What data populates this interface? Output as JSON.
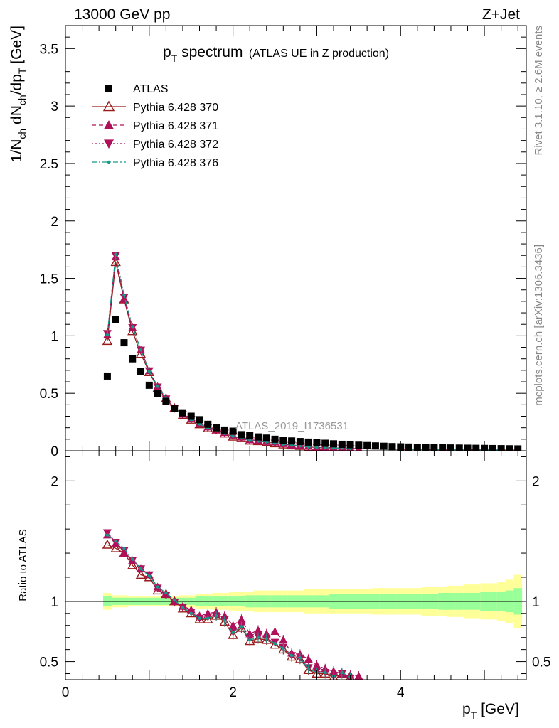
{
  "header": {
    "left": "13000 GeV pp",
    "right": "Z+Jet"
  },
  "side_text": {
    "rivet": "Rivet 3.1.10, ≥ 2.6M events",
    "mcplots": "mcplots.cern.ch [arXiv:1306.3436]"
  },
  "watermark": "ATLAS_2019_I1736531",
  "chart_data": {
    "type": "scatter",
    "title": "p_T spectrum",
    "title_main": "p",
    "title_sub": "T",
    "title_rest": " spectrum",
    "subtitle": "(ATLAS UE in Z production)",
    "xlabel": "p_T [GeV]",
    "xlabel_main": "p",
    "xlabel_sub": "T",
    "xlabel_rest": " [GeV]",
    "ylabel": "1/N_ch dN_ch/dp_T [GeV]",
    "ylabel_parts": [
      {
        "t": "1/N",
        "sub": false
      },
      {
        "t": "ch",
        "sub": true
      },
      {
        "t": " dN",
        "sub": false
      },
      {
        "t": "ch",
        "sub": true
      },
      {
        "t": "/dp",
        "sub": false
      },
      {
        "t": "T",
        "sub": true
      },
      {
        "t": " [GeV]",
        "sub": false
      }
    ],
    "ratio_ylabel": "Ratio to ATLAS",
    "xlim": [
      0,
      5.5
    ],
    "ylim": [
      0,
      3.7
    ],
    "ratio_ylim": [
      0.35,
      2.25
    ],
    "x_ticks": [
      0,
      2,
      4
    ],
    "y_ticks": [
      0,
      0.5,
      1,
      1.5,
      2,
      2.5,
      3,
      3.5
    ],
    "y_tick_labels": [
      "0",
      "0.5",
      "1",
      "1.5",
      "2",
      "2.5",
      "3",
      "3.5"
    ],
    "ratio_ticks": [
      0.5,
      1,
      2
    ],
    "ratio_tick_labels": [
      "0.5",
      "1",
      "2"
    ],
    "legend_position": "top-left",
    "x": [
      0.5,
      0.6,
      0.7,
      0.8,
      0.9,
      1.0,
      1.1,
      1.2,
      1.3,
      1.4,
      1.5,
      1.6,
      1.7,
      1.8,
      1.9,
      2.0,
      2.1,
      2.2,
      2.3,
      2.4,
      2.5,
      2.6,
      2.7,
      2.8,
      2.9,
      3.0,
      3.1,
      3.2,
      3.3,
      3.4,
      3.5,
      3.6,
      3.7,
      3.8,
      3.9,
      4.0,
      4.1,
      4.2,
      4.3,
      4.4,
      4.5,
      4.6,
      4.7,
      4.8,
      4.9,
      5.0,
      5.1,
      5.2,
      5.3,
      5.4
    ],
    "data": {
      "name": "ATLAS",
      "color": "#000000",
      "values": [
        0.65,
        1.14,
        0.94,
        0.8,
        0.69,
        0.57,
        0.5,
        0.43,
        0.37,
        0.33,
        0.3,
        0.27,
        0.23,
        0.2,
        0.18,
        0.17,
        0.14,
        0.13,
        0.12,
        0.11,
        0.1,
        0.09,
        0.085,
        0.08,
        0.075,
        0.07,
        0.065,
        0.06,
        0.056,
        0.052,
        0.048,
        0.045,
        0.042,
        0.039,
        0.036,
        0.034,
        0.032,
        0.03,
        0.028,
        0.026,
        0.025,
        0.024,
        0.023,
        0.022,
        0.021,
        0.02,
        0.019,
        0.018,
        0.017,
        0.016
      ],
      "band_inner": [
        0.04,
        0.03,
        0.03,
        0.03,
        0.03,
        0.03,
        0.03,
        0.03,
        0.03,
        0.03,
        0.03,
        0.04,
        0.04,
        0.04,
        0.04,
        0.04,
        0.04,
        0.05,
        0.05,
        0.05,
        0.05,
        0.05,
        0.05,
        0.05,
        0.05,
        0.05,
        0.05,
        0.06,
        0.06,
        0.06,
        0.06,
        0.06,
        0.06,
        0.06,
        0.06,
        0.06,
        0.06,
        0.06,
        0.06,
        0.06,
        0.07,
        0.07,
        0.07,
        0.07,
        0.07,
        0.08,
        0.08,
        0.08,
        0.09,
        0.11
      ],
      "band_outer": [
        0.07,
        0.05,
        0.05,
        0.04,
        0.04,
        0.04,
        0.04,
        0.04,
        0.04,
        0.05,
        0.05,
        0.06,
        0.06,
        0.07,
        0.07,
        0.08,
        0.08,
        0.08,
        0.09,
        0.09,
        0.09,
        0.09,
        0.09,
        0.09,
        0.1,
        0.1,
        0.1,
        0.1,
        0.1,
        0.1,
        0.1,
        0.1,
        0.11,
        0.11,
        0.11,
        0.11,
        0.11,
        0.11,
        0.12,
        0.12,
        0.12,
        0.13,
        0.13,
        0.14,
        0.14,
        0.15,
        0.15,
        0.16,
        0.18,
        0.22
      ]
    },
    "series": [
      {
        "name": "Pythia 6.428 370",
        "color": "#9a1a1a",
        "marker": "triangle-open",
        "line": "solid",
        "ratio": [
          1.47,
          1.44,
          1.4,
          1.3,
          1.22,
          1.2,
          1.09,
          1.06,
          1.0,
          0.94,
          0.9,
          0.85,
          0.85,
          0.88,
          0.83,
          0.72,
          0.78,
          0.67,
          0.69,
          0.68,
          0.64,
          0.6,
          0.54,
          0.52,
          0.43,
          0.4,
          0.4,
          0.37,
          0.4,
          0.37
        ]
      },
      {
        "name": "Pythia 6.428 371",
        "color": "#b0105a",
        "marker": "triangle-up",
        "line": "dashed",
        "ratio": [
          1.55,
          1.48,
          1.4,
          1.34,
          1.27,
          1.22,
          1.12,
          1.06,
          1.0,
          0.96,
          0.93,
          0.88,
          0.9,
          0.91,
          0.88,
          0.8,
          0.85,
          0.73,
          0.76,
          0.73,
          0.75,
          0.68,
          0.57,
          0.56,
          0.52,
          0.47,
          0.44,
          0.42,
          0.4,
          0.39,
          0.38
        ]
      },
      {
        "name": "Pythia 6.428 372",
        "color": "#b0105a",
        "marker": "triangle-down",
        "line": "dotted",
        "ratio": [
          1.57,
          1.49,
          1.42,
          1.34,
          1.27,
          1.22,
          1.11,
          1.05,
          0.99,
          0.95,
          0.91,
          0.86,
          0.87,
          0.88,
          0.85,
          0.75,
          0.8,
          0.7,
          0.71,
          0.69,
          0.66,
          0.62,
          0.55,
          0.53,
          0.45,
          0.42,
          0.41,
          0.38,
          0.4,
          0.36
        ]
      },
      {
        "name": "Pythia 6.428 376",
        "color": "#159a8a",
        "marker": "dot",
        "line": "dashdot",
        "ratio": [
          1.55,
          1.5,
          1.44,
          1.35,
          1.27,
          1.21,
          1.12,
          1.07,
          1.01,
          0.95,
          0.9,
          0.86,
          0.86,
          0.88,
          0.84,
          0.74,
          0.79,
          0.68,
          0.7,
          0.69,
          0.65,
          0.61,
          0.55,
          0.53,
          0.44,
          0.41,
          0.41,
          0.38,
          0.41,
          0.37
        ]
      }
    ]
  }
}
